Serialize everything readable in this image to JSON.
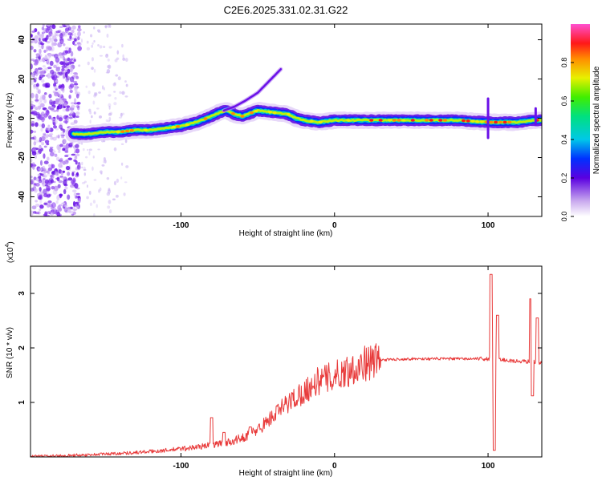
{
  "title": "C2E6.2025.331.02.31.G22",
  "chart_data": [
    {
      "type": "heatmap",
      "title": "C2E6.2025.331.02.31.G22",
      "xlabel": "Height of straight line (km)",
      "ylabel": "Frequency (Hz)",
      "xlim": [
        -198,
        135
      ],
      "ylim": [
        -50,
        48
      ],
      "x_ticks": [
        -100,
        0,
        100
      ],
      "y_ticks": [
        -40,
        -20,
        0,
        20,
        40
      ],
      "colorbar": {
        "label": "Normalized spectral amplitude",
        "range": [
          0,
          1
        ],
        "ticks": [
          0.0,
          0.2,
          0.4,
          0.6,
          0.8
        ],
        "tick_labels": [
          "0.0",
          "0.2",
          "0.4",
          "0.6",
          "0.8"
        ]
      },
      "ridge": {
        "x": [
          -170,
          -160,
          -150,
          -140,
          -130,
          -120,
          -110,
          -100,
          -90,
          -80,
          -75,
          -70,
          -65,
          -60,
          -50,
          -40,
          -30,
          -25,
          -20,
          -10,
          0,
          20,
          50,
          80,
          100,
          120,
          130,
          135
        ],
        "freq": [
          -8,
          -8,
          -7,
          -7,
          -6,
          -6,
          -5,
          -4,
          -2,
          1,
          3,
          4,
          2,
          1,
          4,
          3,
          2,
          0,
          -1,
          -2,
          -1,
          -1,
          -1,
          -1,
          -2,
          -2,
          -1,
          -1
        ]
      },
      "overtone": {
        "x": [
          -72,
          -65,
          -58,
          -50,
          -45,
          -40,
          -35
        ],
        "freq": [
          4,
          6,
          9,
          13,
          17,
          21,
          25
        ]
      }
    },
    {
      "type": "line",
      "xlabel": "Height of straight line (km)",
      "ylabel": "SNR (10 * v/v)",
      "scale_label": "(x10",
      "scale_exponent": "4",
      "scale_close": ")",
      "xlim": [
        -198,
        135
      ],
      "ylim": [
        0,
        3.5
      ],
      "x_ticks": [
        -100,
        0,
        100
      ],
      "y_ticks": [
        1,
        2,
        3
      ],
      "series_color": "#e83a3a",
      "envelope": {
        "x": [
          -198,
          -160,
          -130,
          -110,
          -90,
          -70,
          -60,
          -50,
          -40,
          -30,
          -20,
          -10,
          0,
          10,
          20,
          30,
          50,
          80,
          100,
          110,
          120,
          130,
          135
        ],
        "y": [
          0.01,
          0.04,
          0.08,
          0.12,
          0.18,
          0.26,
          0.35,
          0.5,
          0.75,
          1.0,
          1.2,
          1.4,
          1.48,
          1.6,
          1.72,
          1.78,
          1.8,
          1.8,
          1.8,
          1.78,
          1.75,
          1.75,
          1.72
        ]
      },
      "spikes": [
        {
          "x": -80,
          "y": 0.72
        },
        {
          "x": -72,
          "y": 0.45
        },
        {
          "x": -55,
          "y": 0.55
        },
        {
          "x": 102,
          "y": 3.35
        },
        {
          "x": 104,
          "y": 0.12
        },
        {
          "x": 106,
          "y": 2.6
        },
        {
          "x": 128,
          "y": 2.9
        },
        {
          "x": 129,
          "y": 1.12
        },
        {
          "x": 132,
          "y": 2.55
        }
      ]
    }
  ]
}
